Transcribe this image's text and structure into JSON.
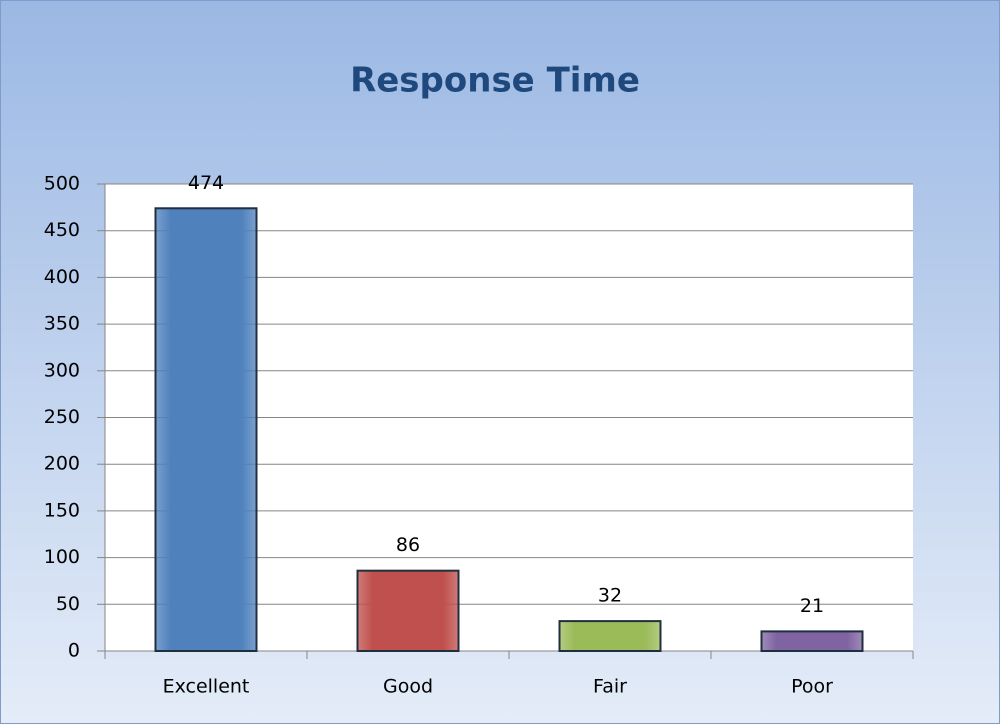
{
  "chart_data": {
    "type": "bar",
    "title": "Response Time",
    "categories": [
      "Excellent",
      "Good",
      "Fair",
      "Poor"
    ],
    "values": [
      474,
      86,
      32,
      21
    ],
    "colors": [
      "#4f81bd",
      "#c0504d",
      "#9bbb59",
      "#8064a2"
    ],
    "ylim": [
      0,
      500
    ],
    "yticks": [
      0,
      50,
      100,
      150,
      200,
      250,
      300,
      350,
      400,
      450,
      500
    ],
    "grid": true
  }
}
